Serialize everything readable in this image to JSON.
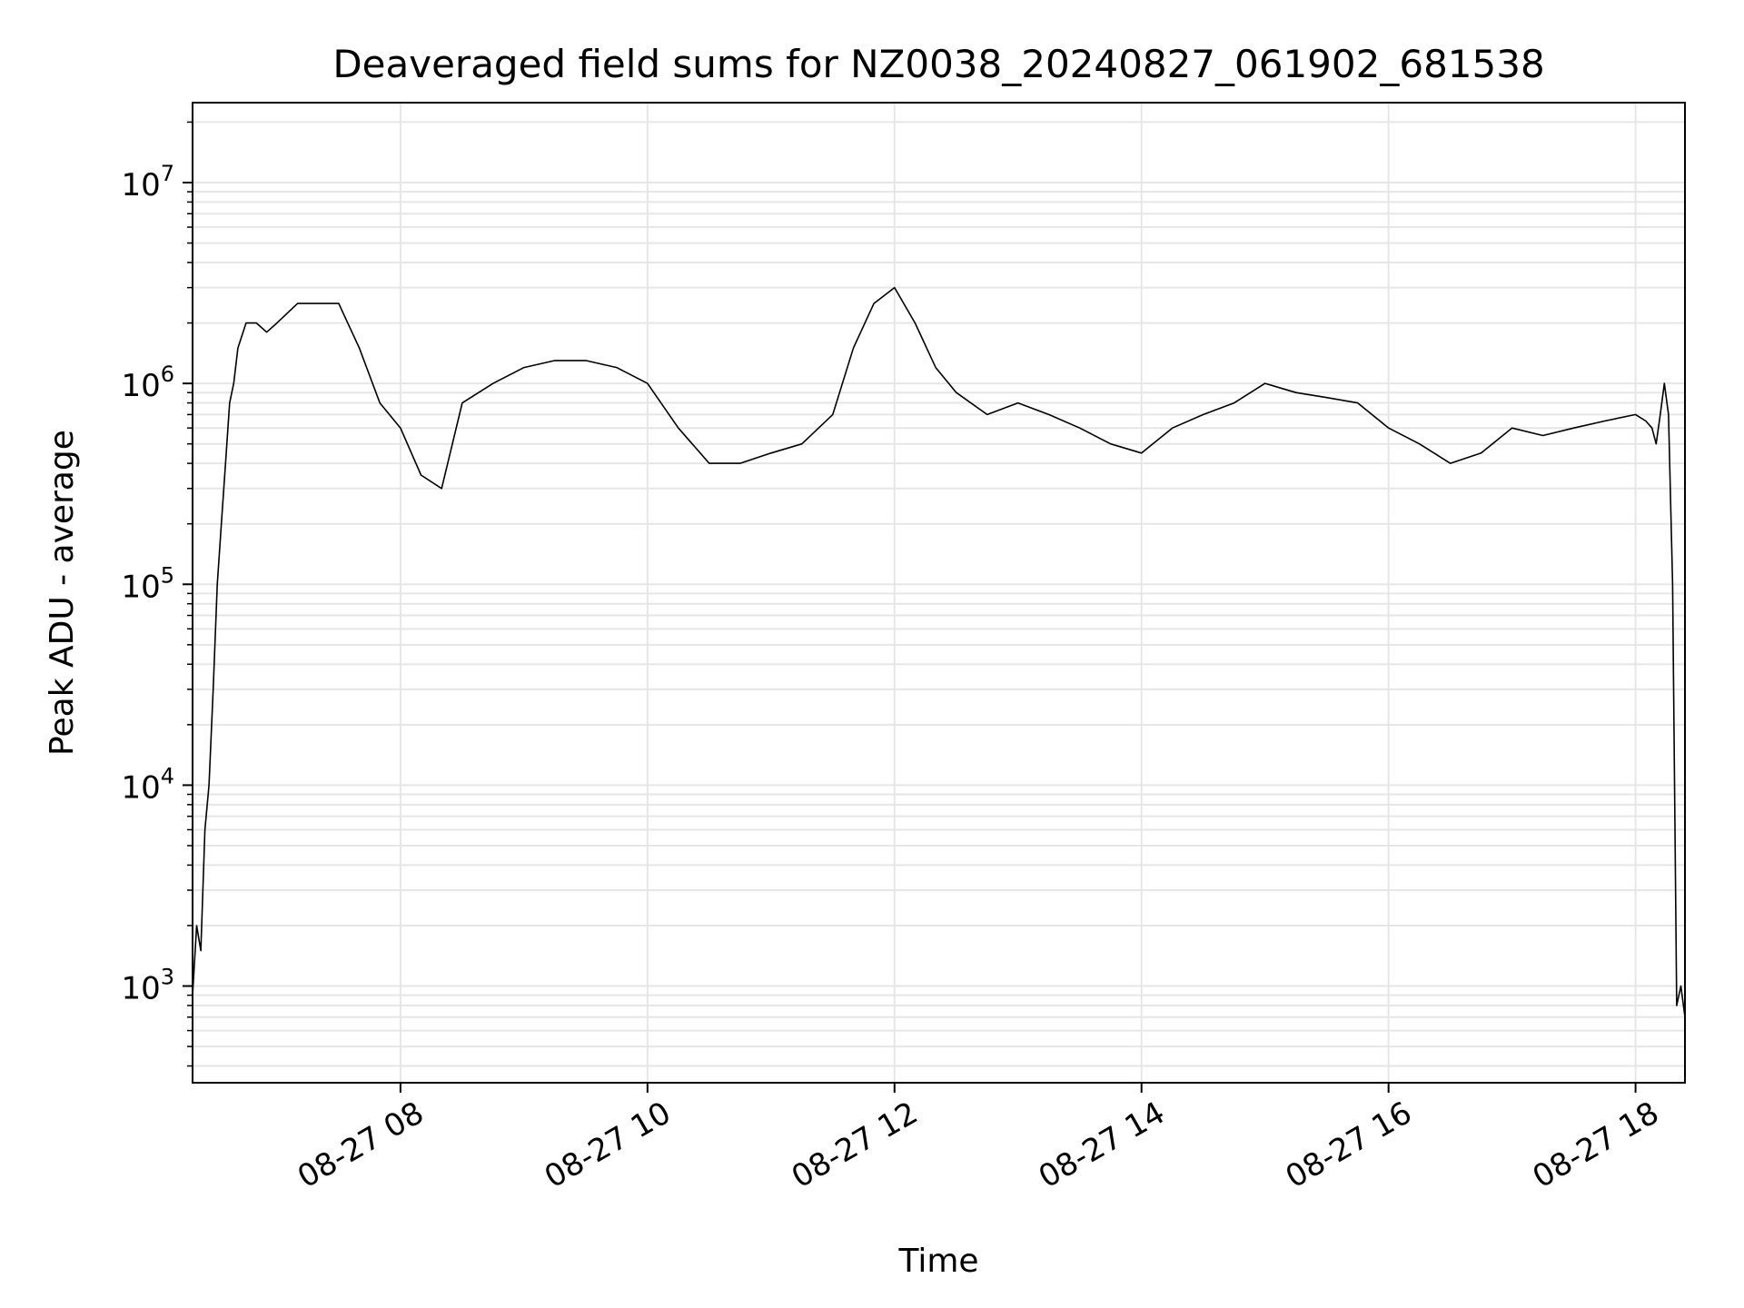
{
  "chart_data": {
    "type": "line",
    "title": "Deaveraged field sums for NZ0038_20240827_061902_681538",
    "xlabel": "Time",
    "ylabel": "Peak ADU - average",
    "yscale": "log",
    "ylim": [
      330,
      25000000
    ],
    "xlim": [
      "2024-08-27 06:19",
      "2024-08-27 18:24"
    ],
    "grid": true,
    "line_color": "#000000",
    "grid_color": "#e6e6e6",
    "x_ticks": [
      {
        "t": "2024-08-27 08:00",
        "label": "08-27 08"
      },
      {
        "t": "2024-08-27 10:00",
        "label": "08-27 10"
      },
      {
        "t": "2024-08-27 12:00",
        "label": "08-27 12"
      },
      {
        "t": "2024-08-27 14:00",
        "label": "08-27 14"
      },
      {
        "t": "2024-08-27 16:00",
        "label": "08-27 16"
      },
      {
        "t": "2024-08-27 18:00",
        "label": "08-27 18"
      }
    ],
    "y_ticks": [
      {
        "value": 1000,
        "base": "10",
        "exp": "3"
      },
      {
        "value": 10000,
        "base": "10",
        "exp": "4"
      },
      {
        "value": 100000,
        "base": "10",
        "exp": "5"
      },
      {
        "value": 1000000,
        "base": "10",
        "exp": "6"
      },
      {
        "value": 10000000,
        "base": "10",
        "exp": "7"
      }
    ],
    "series": [
      {
        "x": [
          "2024-08-27 06:19",
          "2024-08-27 06:21",
          "2024-08-27 06:23",
          "2024-08-27 06:25",
          "2024-08-27 06:27",
          "2024-08-27 06:29",
          "2024-08-27 06:31",
          "2024-08-27 06:33",
          "2024-08-27 06:35",
          "2024-08-27 06:37",
          "2024-08-27 06:39",
          "2024-08-27 06:41",
          "2024-08-27 06:45",
          "2024-08-27 06:50",
          "2024-08-27 06:55",
          "2024-08-27 07:00",
          "2024-08-27 07:10",
          "2024-08-27 07:20",
          "2024-08-27 07:30",
          "2024-08-27 07:40",
          "2024-08-27 07:50",
          "2024-08-27 08:00",
          "2024-08-27 08:10",
          "2024-08-27 08:20",
          "2024-08-27 08:30",
          "2024-08-27 08:45",
          "2024-08-27 09:00",
          "2024-08-27 09:15",
          "2024-08-27 09:30",
          "2024-08-27 09:45",
          "2024-08-27 10:00",
          "2024-08-27 10:15",
          "2024-08-27 10:30",
          "2024-08-27 10:45",
          "2024-08-27 11:00",
          "2024-08-27 11:15",
          "2024-08-27 11:30",
          "2024-08-27 11:40",
          "2024-08-27 11:50",
          "2024-08-27 12:00",
          "2024-08-27 12:10",
          "2024-08-27 12:20",
          "2024-08-27 12:30",
          "2024-08-27 12:45",
          "2024-08-27 13:00",
          "2024-08-27 13:15",
          "2024-08-27 13:30",
          "2024-08-27 13:45",
          "2024-08-27 14:00",
          "2024-08-27 14:15",
          "2024-08-27 14:30",
          "2024-08-27 14:45",
          "2024-08-27 15:00",
          "2024-08-27 15:15",
          "2024-08-27 15:30",
          "2024-08-27 15:45",
          "2024-08-27 16:00",
          "2024-08-27 16:15",
          "2024-08-27 16:30",
          "2024-08-27 16:45",
          "2024-08-27 17:00",
          "2024-08-27 17:15",
          "2024-08-27 17:30",
          "2024-08-27 17:45",
          "2024-08-27 18:00",
          "2024-08-27 18:05",
          "2024-08-27 18:08",
          "2024-08-27 18:10",
          "2024-08-27 18:12",
          "2024-08-27 18:14",
          "2024-08-27 18:16",
          "2024-08-27 18:18",
          "2024-08-27 18:20",
          "2024-08-27 18:22",
          "2024-08-27 18:24"
        ],
        "y": [
          900,
          2000,
          1500,
          6000,
          10000,
          30000,
          100000,
          200000,
          400000,
          800000,
          1000000,
          1500000,
          2000000,
          2000000,
          1800000,
          2000000,
          2500000,
          2500000,
          2500000,
          1500000,
          800000,
          600000,
          350000,
          300000,
          800000,
          1000000,
          1200000,
          1300000,
          1300000,
          1200000,
          1000000,
          600000,
          400000,
          400000,
          450000,
          500000,
          700000,
          1500000,
          2500000,
          3000000,
          2000000,
          1200000,
          900000,
          700000,
          800000,
          700000,
          600000,
          500000,
          450000,
          600000,
          700000,
          800000,
          1000000,
          900000,
          850000,
          800000,
          600000,
          500000,
          400000,
          450000,
          600000,
          550000,
          600000,
          650000,
          700000,
          650000,
          600000,
          500000,
          700000,
          1000000,
          700000,
          100000,
          800,
          1000,
          700
        ]
      }
    ]
  }
}
